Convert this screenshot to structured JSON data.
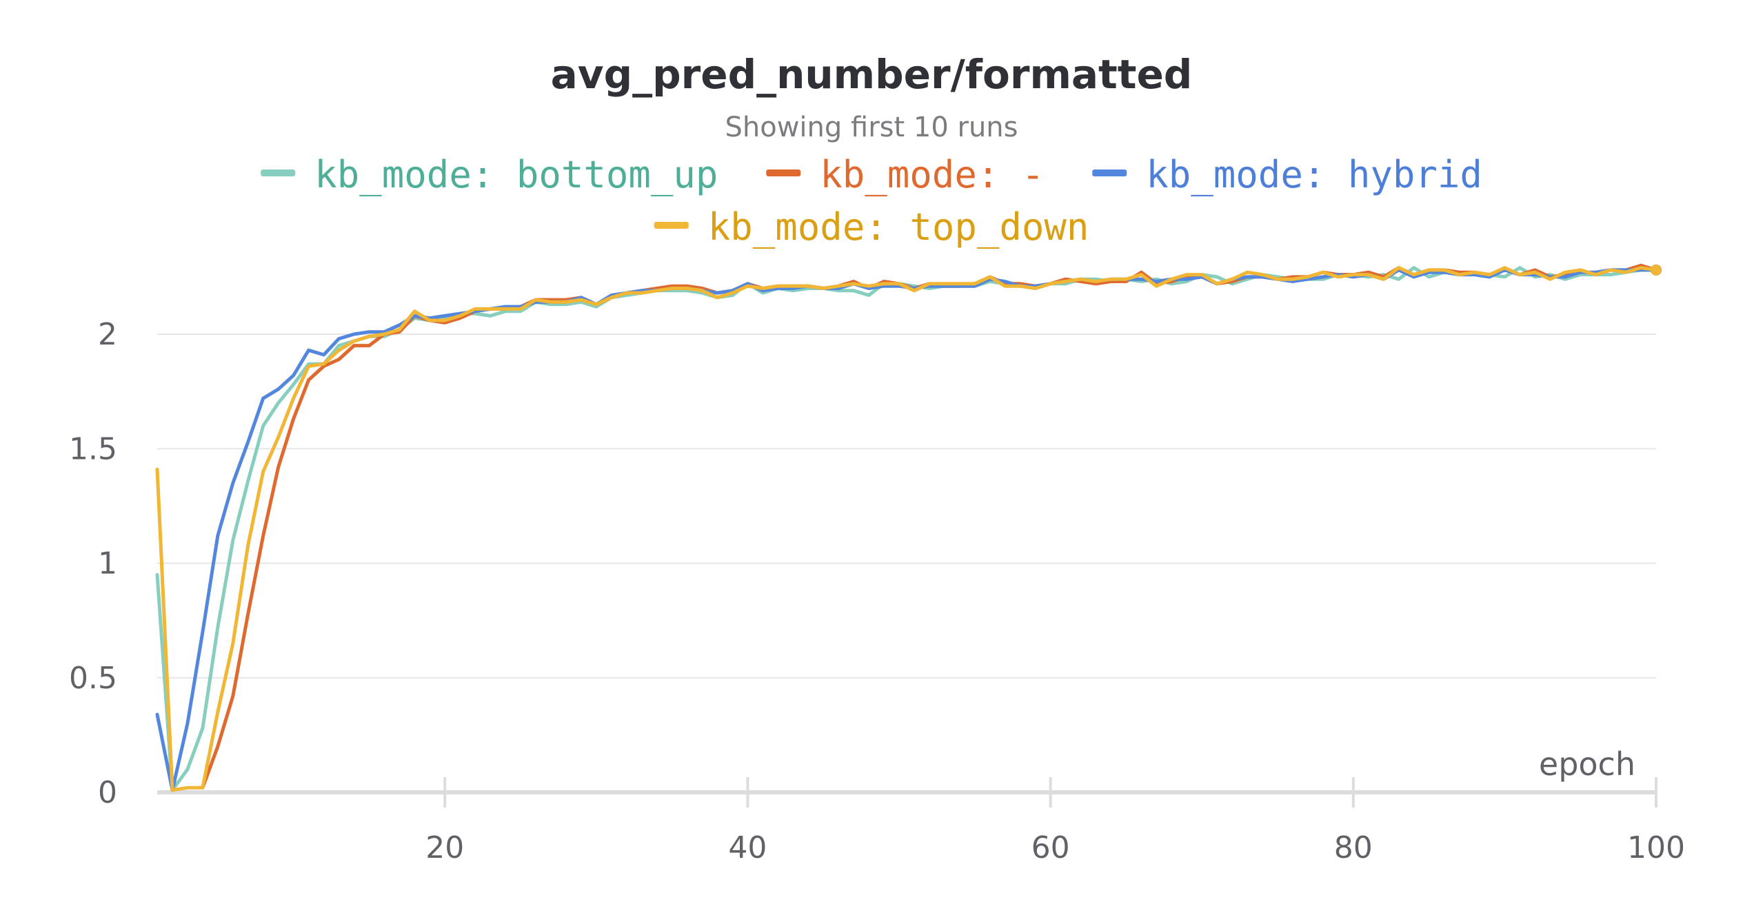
{
  "chart_data": {
    "type": "line",
    "title": "avg_pred_number/formatted",
    "subtitle": "Showing first 10 runs",
    "xlabel": "epoch",
    "ylabel": "",
    "xlim": [
      0,
      100
    ],
    "ylim": [
      0,
      2.3
    ],
    "x_ticks": [
      "20",
      "40",
      "60",
      "80",
      "100"
    ],
    "y_ticks": [
      "0",
      "0.5",
      "1",
      "1.5",
      "2"
    ],
    "grid": true,
    "legend_position": "top",
    "x": [
      1,
      2,
      3,
      4,
      5,
      6,
      7,
      8,
      9,
      10,
      11,
      12,
      13,
      14,
      15,
      16,
      17,
      18,
      19,
      20,
      21,
      22,
      23,
      24,
      25,
      26,
      27,
      28,
      29,
      30,
      31,
      32,
      33,
      34,
      35,
      36,
      37,
      38,
      39,
      40,
      41,
      42,
      43,
      44,
      45,
      46,
      47,
      48,
      49,
      50,
      51,
      52,
      53,
      54,
      55,
      56,
      57,
      58,
      59,
      60,
      61,
      62,
      63,
      64,
      65,
      66,
      67,
      68,
      69,
      70,
      71,
      72,
      73,
      74,
      75,
      76,
      77,
      78,
      79,
      80,
      81,
      82,
      83,
      84,
      85,
      86,
      87,
      88,
      89,
      90,
      91,
      92,
      93,
      94,
      95,
      96,
      97,
      98,
      99,
      100
    ],
    "series": [
      {
        "name": "kb_mode: bottom_up",
        "color": "#87cebf",
        "legend_text_color": "#4fae97",
        "values": [
          0.95,
          0.01,
          0.1,
          0.28,
          0.72,
          1.1,
          1.36,
          1.6,
          1.7,
          1.78,
          1.87,
          1.87,
          1.95,
          1.97,
          1.99,
          1.99,
          2.02,
          2.07,
          2.06,
          2.07,
          2.09,
          2.09,
          2.08,
          2.1,
          2.1,
          2.14,
          2.13,
          2.13,
          2.14,
          2.12,
          2.16,
          2.17,
          2.18,
          2.19,
          2.19,
          2.19,
          2.18,
          2.16,
          2.17,
          2.22,
          2.18,
          2.2,
          2.19,
          2.2,
          2.2,
          2.19,
          2.19,
          2.17,
          2.22,
          2.22,
          2.21,
          2.2,
          2.21,
          2.21,
          2.21,
          2.23,
          2.22,
          2.21,
          2.2,
          2.22,
          2.22,
          2.24,
          2.24,
          2.23,
          2.24,
          2.23,
          2.24,
          2.22,
          2.23,
          2.26,
          2.25,
          2.22,
          2.24,
          2.26,
          2.25,
          2.24,
          2.24,
          2.24,
          2.26,
          2.26,
          2.25,
          2.26,
          2.24,
          2.29,
          2.25,
          2.27,
          2.27,
          2.26,
          2.26,
          2.25,
          2.29,
          2.25,
          2.26,
          2.24,
          2.26,
          2.26,
          2.26,
          2.27,
          2.28,
          2.28
        ]
      },
      {
        "name": "kb_mode: -",
        "color": "#df6a2f",
        "legend_text_color": "#df6a2f",
        "values": [
          null,
          null,
          null,
          0.02,
          0.2,
          0.42,
          0.78,
          1.12,
          1.42,
          1.63,
          1.8,
          1.86,
          1.89,
          1.95,
          1.95,
          2.0,
          2.01,
          2.08,
          2.06,
          2.05,
          2.07,
          2.1,
          2.11,
          2.11,
          2.12,
          2.15,
          2.15,
          2.15,
          2.16,
          2.13,
          2.16,
          2.18,
          2.19,
          2.2,
          2.21,
          2.21,
          2.2,
          2.18,
          2.19,
          2.22,
          2.2,
          2.21,
          2.21,
          2.21,
          2.2,
          2.21,
          2.23,
          2.2,
          2.23,
          2.22,
          2.2,
          2.22,
          2.21,
          2.21,
          2.22,
          2.25,
          2.22,
          2.22,
          2.21,
          2.22,
          2.24,
          2.23,
          2.22,
          2.23,
          2.23,
          2.27,
          2.22,
          2.23,
          2.25,
          2.25,
          2.22,
          2.23,
          2.25,
          2.25,
          2.24,
          2.25,
          2.25,
          2.27,
          2.26,
          2.26,
          2.27,
          2.25,
          2.29,
          2.26,
          2.28,
          2.28,
          2.27,
          2.27,
          2.26,
          2.28,
          2.26,
          2.28,
          2.25,
          2.26,
          2.28,
          2.26,
          2.28,
          2.28,
          2.3,
          2.28
        ]
      },
      {
        "name": "kb_mode: hybrid",
        "color": "#5387dd",
        "legend_text_color": "#4d7fd8",
        "values": [
          0.34,
          0.01,
          0.3,
          0.7,
          1.12,
          1.35,
          1.53,
          1.72,
          1.76,
          1.82,
          1.93,
          1.91,
          1.98,
          2.0,
          2.01,
          2.01,
          2.04,
          2.08,
          2.07,
          2.08,
          2.09,
          2.1,
          2.11,
          2.12,
          2.12,
          2.14,
          2.14,
          2.14,
          2.16,
          2.13,
          2.17,
          2.18,
          2.19,
          2.19,
          2.2,
          2.2,
          2.19,
          2.18,
          2.19,
          2.22,
          2.19,
          2.2,
          2.2,
          2.21,
          2.2,
          2.2,
          2.22,
          2.2,
          2.21,
          2.21,
          2.2,
          2.21,
          2.21,
          2.21,
          2.21,
          2.24,
          2.23,
          2.21,
          2.21,
          2.22,
          2.23,
          2.24,
          2.23,
          2.24,
          2.24,
          2.24,
          2.23,
          2.24,
          2.24,
          2.25,
          2.22,
          2.24,
          2.25,
          2.25,
          2.24,
          2.23,
          2.24,
          2.25,
          2.26,
          2.25,
          2.26,
          2.24,
          2.28,
          2.25,
          2.27,
          2.27,
          2.26,
          2.26,
          2.25,
          2.28,
          2.26,
          2.26,
          2.25,
          2.25,
          2.27,
          2.27,
          2.28,
          2.28,
          2.28,
          2.28
        ]
      },
      {
        "name": "kb_mode: top_down",
        "color": "#f0b634",
        "legend_text_color": "#db9f13",
        "values": [
          1.41,
          0.01,
          0.02,
          0.02,
          0.35,
          0.65,
          1.08,
          1.4,
          1.55,
          1.72,
          1.86,
          1.87,
          1.93,
          1.97,
          1.99,
          2.0,
          2.02,
          2.1,
          2.06,
          2.06,
          2.08,
          2.11,
          2.11,
          2.11,
          2.11,
          2.15,
          2.14,
          2.14,
          2.15,
          2.13,
          2.16,
          2.18,
          2.18,
          2.19,
          2.2,
          2.2,
          2.19,
          2.16,
          2.18,
          2.21,
          2.2,
          2.21,
          2.21,
          2.21,
          2.2,
          2.21,
          2.22,
          2.21,
          2.22,
          2.22,
          2.19,
          2.22,
          2.22,
          2.22,
          2.22,
          2.25,
          2.21,
          2.21,
          2.2,
          2.22,
          2.23,
          2.24,
          2.23,
          2.24,
          2.24,
          2.26,
          2.21,
          2.24,
          2.26,
          2.26,
          2.22,
          2.24,
          2.27,
          2.26,
          2.24,
          2.24,
          2.25,
          2.27,
          2.25,
          2.26,
          2.26,
          2.24,
          2.29,
          2.26,
          2.28,
          2.28,
          2.26,
          2.27,
          2.26,
          2.29,
          2.26,
          2.27,
          2.24,
          2.27,
          2.28,
          2.26,
          2.28,
          2.27,
          2.29,
          2.28
        ]
      }
    ]
  }
}
